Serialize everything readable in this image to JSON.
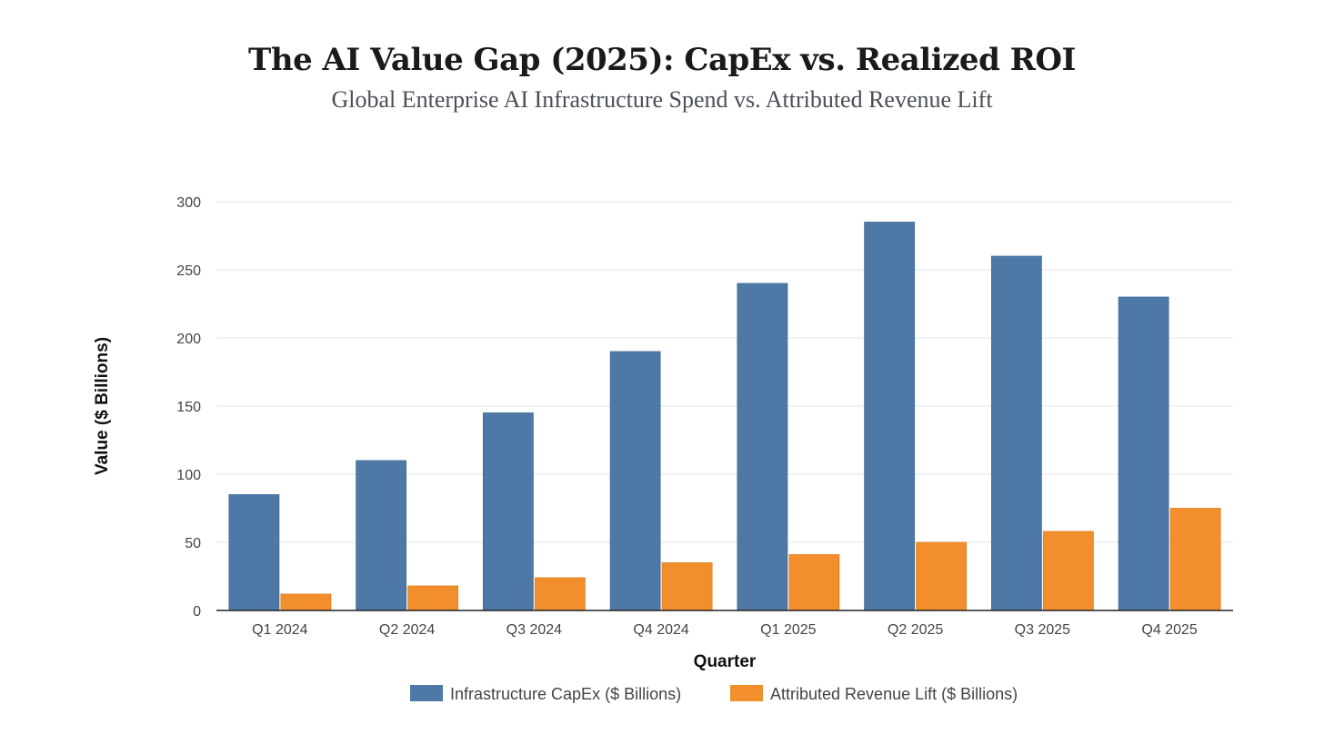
{
  "chart_data": {
    "type": "bar",
    "title": "The AI Value Gap (2025): CapEx vs. Realized ROI",
    "subtitle": "Global Enterprise AI Infrastructure Spend vs. Attributed Revenue Lift",
    "xlabel": "Quarter",
    "ylabel": "Value ($ Billions)",
    "categories": [
      "Q1 2024",
      "Q2 2024",
      "Q3 2024",
      "Q4 2024",
      "Q1 2025",
      "Q2 2025",
      "Q3 2025",
      "Q4 2025"
    ],
    "series": [
      {
        "name": "Infrastructure CapEx ($ Billions)",
        "color": "#4e79a7",
        "values": [
          85,
          110,
          145,
          190,
          240,
          285,
          260,
          230
        ]
      },
      {
        "name": "Attributed Revenue Lift ($ Billions)",
        "color": "#f28e2b",
        "values": [
          12,
          18,
          24,
          35,
          41,
          50,
          58,
          75
        ]
      }
    ],
    "ylim": [
      0,
      300
    ],
    "yticks": [
      0,
      50,
      100,
      150,
      200,
      250,
      300
    ],
    "grid": true,
    "legend_position": "bottom"
  }
}
